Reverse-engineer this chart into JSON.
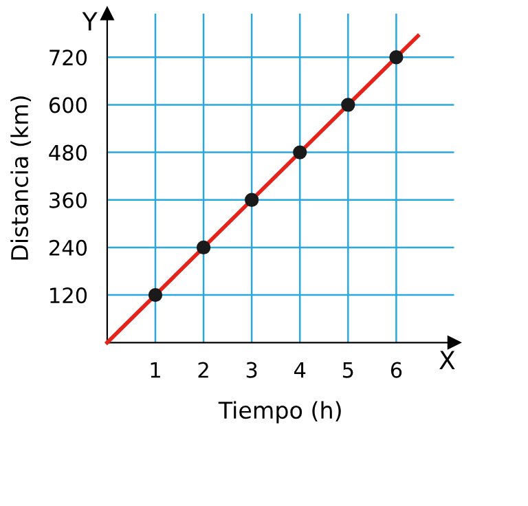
{
  "chart_data": {
    "type": "line",
    "xlabel": "Tiempo (h)",
    "ylabel": "Distancia (km)",
    "series": [
      {
        "color": "#e5231b",
        "x": [
          0,
          6.45
        ],
        "values": [
          0,
          774
        ],
        "marker": "none"
      },
      {
        "type": "scatter",
        "color": "#1a1a1a",
        "x": [
          1,
          2,
          3,
          4,
          5,
          6
        ],
        "values": [
          120,
          240,
          360,
          480,
          600,
          720
        ],
        "marker": "circle"
      }
    ],
    "xlim": [
      0,
      7.2
    ],
    "ylim": [
      0,
      830
    ],
    "xticks": [
      1,
      2,
      3,
      4,
      5,
      6
    ],
    "yticks": [
      120,
      240,
      360,
      480,
      600,
      720
    ],
    "grid": true,
    "annotations": [
      "X",
      "Y"
    ]
  }
}
